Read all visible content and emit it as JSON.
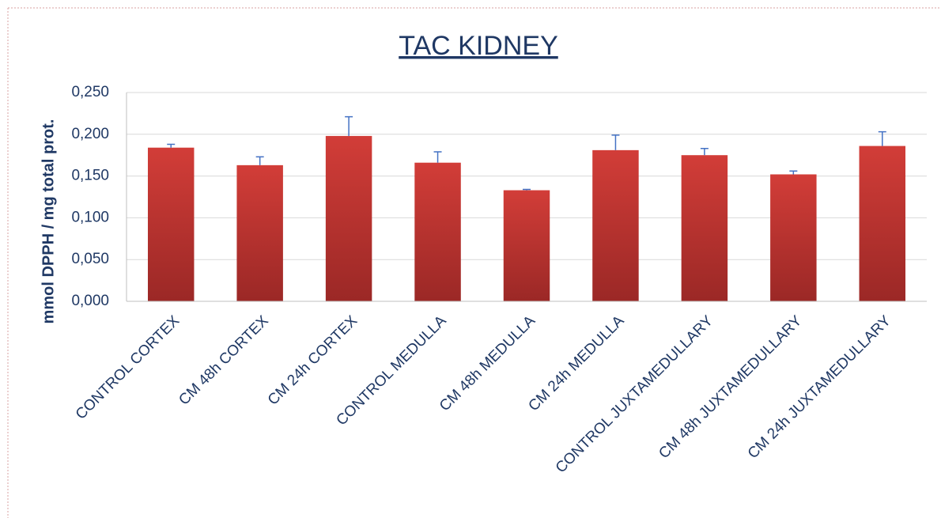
{
  "chart_data": {
    "type": "bar",
    "title": "TAC KIDNEY",
    "y_label": "mmol DPPH / mg total prot.",
    "categories": [
      "CONTROL CORTEX",
      "CM 48h CORTEX",
      "CM 24h CORTEX",
      "CONTROL MEDULLA",
      "CM 48h MEDULLA",
      "CM 24h MEDULLA",
      "CONTROL JUXTAMEDULLARY",
      "CM 48h JUXTAMEDULLARY",
      "CM 24h JUXTAMEDULLARY"
    ],
    "values": [
      0.184,
      0.163,
      0.198,
      0.166,
      0.133,
      0.181,
      0.175,
      0.152,
      0.186
    ],
    "errors": [
      0.004,
      0.01,
      0.023,
      0.013,
      0.001,
      0.018,
      0.008,
      0.004,
      0.017
    ],
    "color": "#c9302c",
    "error_color": "#4472c4",
    "ylim": [
      0,
      0.25
    ],
    "yticks": [
      {
        "value": 0,
        "label": "0,000"
      },
      {
        "value": 0.05,
        "label": "0,050"
      },
      {
        "value": 0.1,
        "label": "0,100"
      },
      {
        "value": 0.15,
        "label": "0,150"
      },
      {
        "value": 0.2,
        "label": "0,200"
      },
      {
        "value": 0.25,
        "label": "0,250"
      }
    ],
    "grid": true
  }
}
